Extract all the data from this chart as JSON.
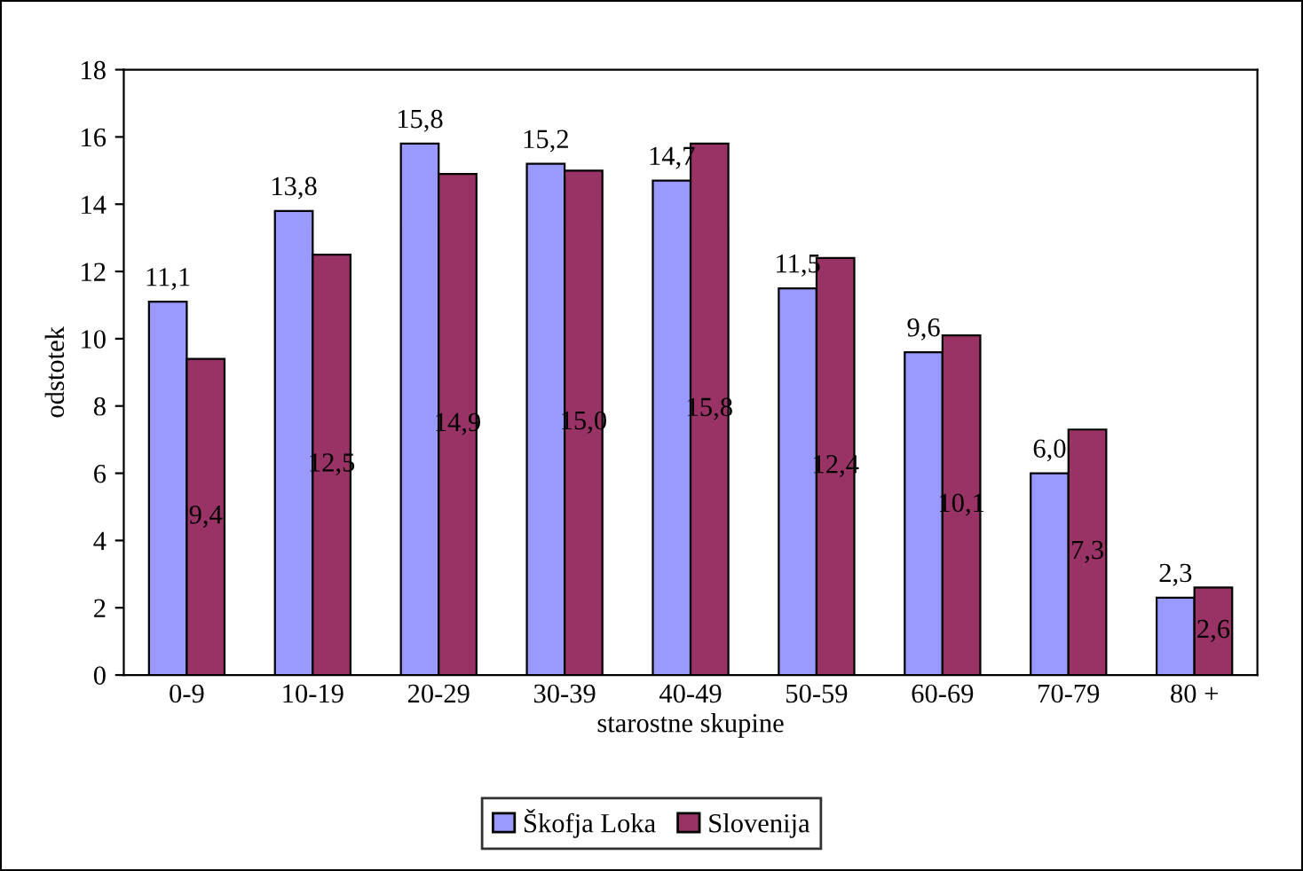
{
  "chart_data": {
    "type": "bar",
    "xlabel": "starostne skupine",
    "ylabel": "odstotek",
    "categories": [
      "0-9",
      "10-19",
      "20-29",
      "30-39",
      "40-49",
      "50-59",
      "60-69",
      "70-79",
      "80 +"
    ],
    "series": [
      {
        "name": "Škofja Loka",
        "color": "#9999ff",
        "values": [
          11.1,
          13.8,
          15.8,
          15.2,
          14.7,
          11.5,
          9.6,
          6.0,
          2.3
        ],
        "value_labels": [
          "11,1",
          "13,8",
          "15,8",
          "15,2",
          "14,7",
          "11,5",
          "9,6",
          "6,0",
          "2,3"
        ]
      },
      {
        "name": "Slovenija",
        "color": "#993366",
        "values": [
          9.4,
          12.5,
          14.9,
          15.0,
          15.8,
          12.4,
          10.1,
          7.3,
          2.6
        ],
        "value_labels": [
          "9,4",
          "12,5",
          "14,9",
          "15,0",
          "15,8",
          "12,4",
          "10,1",
          "7,3",
          "2,6"
        ]
      }
    ],
    "ylim": [
      0,
      18
    ],
    "yticks": [
      0,
      2,
      4,
      6,
      8,
      10,
      12,
      14,
      16,
      18
    ],
    "grid": false,
    "legend": "bottom"
  }
}
